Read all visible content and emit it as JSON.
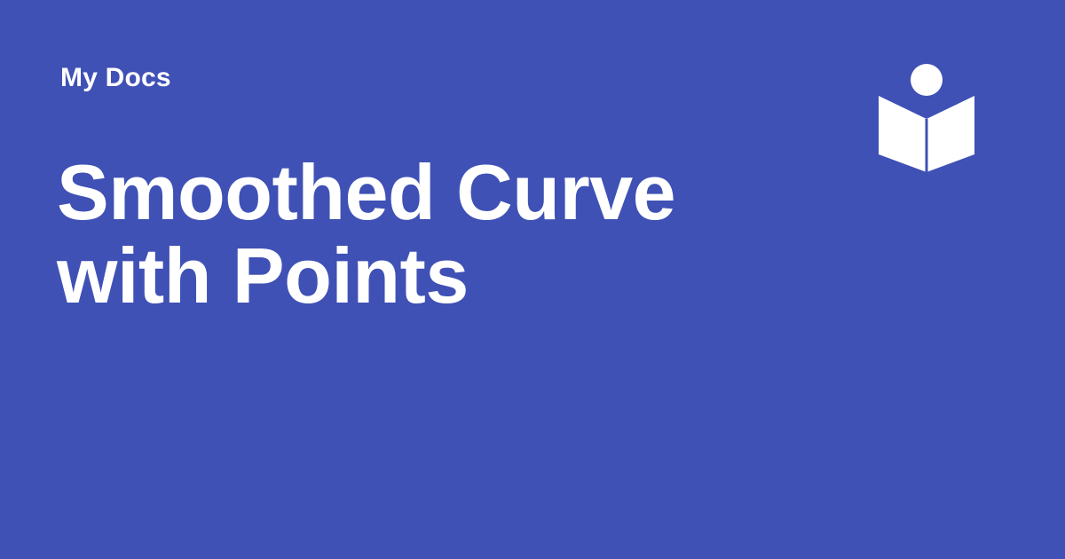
{
  "site": {
    "name": "My Docs"
  },
  "page": {
    "title": "Smoothed Curve with Points"
  },
  "logo": {
    "icon": "book-reader-icon",
    "color": "#ffffff"
  },
  "theme": {
    "background": "#3f51b5",
    "text": "#ffffff"
  }
}
